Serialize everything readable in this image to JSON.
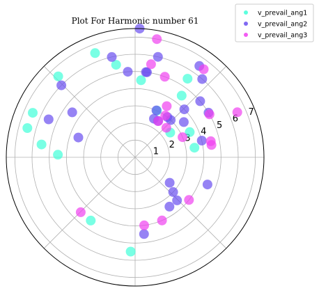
{
  "chart_data": {
    "type": "scatter",
    "projection": "polar",
    "title": "Plot For Harmonic number 61",
    "r_ticks": [
      1,
      2,
      3,
      4,
      5,
      6,
      7
    ],
    "rlim": [
      0,
      7.5
    ],
    "theta_grid_deg": [
      0,
      45,
      90,
      135,
      180,
      225,
      270,
      315
    ],
    "grid": true,
    "legend": "top-right",
    "series": [
      {
        "name": "v_prevail_ang1",
        "color": "#40ffd8",
        "points": [
          {
            "theta_deg": 35.2,
            "r": 2.5
          },
          {
            "theta_deg": 24.8,
            "r": 3.5
          },
          {
            "theta_deg": 53.0,
            "r": 4.5
          },
          {
            "theta_deg": 56.3,
            "r": 5.5
          },
          {
            "theta_deg": 85.6,
            "r": 4.5
          },
          {
            "theta_deg": 101.6,
            "r": 5.5
          },
          {
            "theta_deg": 111.0,
            "r": 6.5
          },
          {
            "theta_deg": 133.5,
            "r": 6.5
          },
          {
            "theta_deg": 156.5,
            "r": 6.5
          },
          {
            "theta_deg": 172.2,
            "r": 5.5
          },
          {
            "theta_deg": 164.8,
            "r": 6.5
          },
          {
            "theta_deg": 178.1,
            "r": 4.5
          },
          {
            "theta_deg": 235.0,
            "r": 4.5
          },
          {
            "theta_deg": 267.3,
            "r": 5.5
          },
          {
            "theta_deg": 9.2,
            "r": 3.5
          },
          {
            "theta_deg": 65.0,
            "r": 3.0
          }
        ]
      },
      {
        "name": "v_prevail_ang2",
        "color": "#6a4ff0",
        "points": [
          {
            "theta_deg": 88.0,
            "r": 7.5
          },
          {
            "theta_deg": 103.1,
            "r": 6.0
          },
          {
            "theta_deg": 135.7,
            "r": 6.0
          },
          {
            "theta_deg": 144.4,
            "r": 4.5
          },
          {
            "theta_deg": 156.3,
            "r": 5.5
          },
          {
            "theta_deg": 160.8,
            "r": 3.5
          },
          {
            "theta_deg": 94.9,
            "r": 5.0
          },
          {
            "theta_deg": 82.8,
            "r": 5.0
          },
          {
            "theta_deg": 65.6,
            "r": 3.0
          },
          {
            "theta_deg": 64.0,
            "r": 2.5
          },
          {
            "theta_deg": 57.8,
            "r": 2.5
          },
          {
            "theta_deg": 51.3,
            "r": 3.0
          },
          {
            "theta_deg": 46.3,
            "r": 3.0
          },
          {
            "theta_deg": 44.3,
            "r": 4.0
          },
          {
            "theta_deg": 40.8,
            "r": 5.0
          },
          {
            "theta_deg": 54.9,
            "r": 6.5
          },
          {
            "theta_deg": 82.1,
            "r": 5.0
          },
          {
            "theta_deg": 77.2,
            "r": 6.0
          },
          {
            "theta_deg": 49.4,
            "r": 6.0
          },
          {
            "theta_deg": 35.9,
            "r": 3.5
          },
          {
            "theta_deg": 339.4,
            "r": 4.5
          },
          {
            "theta_deg": 314.2,
            "r": 3.5
          },
          {
            "theta_deg": 317.6,
            "r": 3.0
          },
          {
            "theta_deg": 323.6,
            "r": 2.5
          },
          {
            "theta_deg": 304.8,
            "r": 3.5
          },
          {
            "theta_deg": 276.6,
            "r": 4.5
          },
          {
            "theta_deg": 31.3,
            "r": 5.0
          },
          {
            "theta_deg": 14.1,
            "r": 4.0
          }
        ]
      },
      {
        "name": "v_prevail_ang3",
        "color": "#f040f0",
        "points": [
          {
            "theta_deg": 79.6,
            "r": 7.0
          },
          {
            "theta_deg": 80.3,
            "r": 5.5
          },
          {
            "theta_deg": 69.8,
            "r": 5.0
          },
          {
            "theta_deg": 52.1,
            "r": 6.5
          },
          {
            "theta_deg": 54.2,
            "r": 3.0
          },
          {
            "theta_deg": 58.3,
            "r": 3.5
          },
          {
            "theta_deg": 57.4,
            "r": 2.5
          },
          {
            "theta_deg": 43.4,
            "r": 2.5
          },
          {
            "theta_deg": 23.0,
            "r": 3.0
          },
          {
            "theta_deg": 30.0,
            "r": 5.0
          },
          {
            "theta_deg": 23.8,
            "r": 6.5
          },
          {
            "theta_deg": 12.0,
            "r": 4.5
          },
          {
            "theta_deg": 9.2,
            "r": 4.5
          },
          {
            "theta_deg": 321.6,
            "r": 4.0
          },
          {
            "theta_deg": 293.0,
            "r": 4.0
          },
          {
            "theta_deg": 277.6,
            "r": 4.0
          },
          {
            "theta_deg": 225.3,
            "r": 4.5
          }
        ]
      }
    ]
  }
}
